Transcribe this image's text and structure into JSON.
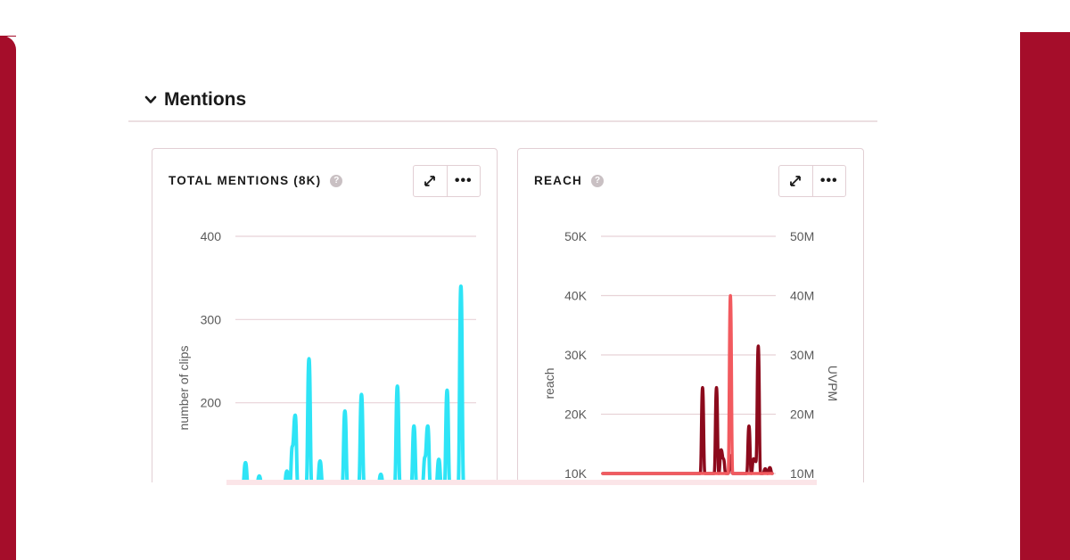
{
  "colors": {
    "brand": "#a50d2a",
    "mentions_line": "#2ee4f6",
    "reach_line": "#8c0a1c",
    "uvpm_line": "#f25a5f",
    "gridline": "#e8d2d7"
  },
  "section": {
    "title": "Mentions",
    "toggle_icon": "chevron-down-icon"
  },
  "cards": {
    "mentions": {
      "title": "TOTAL MENTIONS (8K)",
      "help_icon": "?",
      "expand_icon": "expand-arrows-icon",
      "more_label": "•••"
    },
    "reach": {
      "title": "REACH",
      "help_icon": "?",
      "expand_icon": "expand-arrows-icon",
      "more_label": "•••"
    }
  },
  "chart_data": [
    {
      "type": "line",
      "title": "TOTAL MENTIONS (8K)",
      "ylabel": "number of clips",
      "yticks": [
        "400",
        "300",
        "200"
      ],
      "ylim": [
        100,
        400
      ],
      "series": [
        {
          "color": "#2ee4f6",
          "values": [
            100,
            100,
            100,
            128,
            100,
            100,
            100,
            100,
            112,
            100,
            100,
            100,
            100,
            100,
            100,
            100,
            100,
            100,
            118,
            100,
            148,
            185,
            100,
            100,
            100,
            100,
            253,
            100,
            100,
            100,
            130,
            100,
            100,
            100,
            100,
            100,
            100,
            100,
            100,
            190,
            100,
            100,
            100,
            100,
            100,
            210,
            100,
            100,
            100,
            100,
            100,
            100,
            114,
            100,
            100,
            100,
            100,
            100,
            220,
            100,
            100,
            100,
            100,
            100,
            172,
            100,
            100,
            100,
            135,
            172,
            100,
            100,
            100,
            132,
            100,
            100,
            215,
            100,
            100,
            100,
            100,
            340,
            100
          ]
        }
      ]
    },
    {
      "type": "line",
      "title": "REACH",
      "ylabel": "reach",
      "y2label": "UVPM",
      "yticks": [
        "50K",
        "40K",
        "30K",
        "20K",
        "10K"
      ],
      "y2ticks": [
        "50M",
        "40M",
        "30M",
        "20M",
        "10M"
      ],
      "ylim": [
        10000,
        50000
      ],
      "y2lim": [
        10000000,
        50000000
      ],
      "series": [
        {
          "axis": "left",
          "color": "#8c0a1c",
          "values": [
            10000,
            10000,
            10000,
            10000,
            10000,
            10000,
            10000,
            10000,
            10000,
            10000,
            10000,
            10000,
            10000,
            10000,
            10000,
            10000,
            10000,
            10000,
            10000,
            10000,
            10000,
            10000,
            10000,
            10000,
            10000,
            10000,
            10000,
            10000,
            10000,
            10000,
            10000,
            10000,
            10000,
            10000,
            10000,
            10000,
            10000,
            10000,
            10000,
            10000,
            10000,
            10000,
            10000,
            24500,
            10000,
            10000,
            10000,
            10000,
            10000,
            24500,
            10000,
            14000,
            12500,
            10000,
            10000,
            13000,
            10000,
            10000,
            10000,
            10000,
            10000,
            10000,
            10000,
            18000,
            10000,
            12500,
            12000,
            31500,
            10000,
            10000,
            10800,
            10000,
            11000,
            10000
          ]
        },
        {
          "axis": "right",
          "color": "#f25a5f",
          "values": [
            10000000,
            10000000,
            10000000,
            10000000,
            10000000,
            10000000,
            10000000,
            10000000,
            10000000,
            10000000,
            10000000,
            10000000,
            10000000,
            10000000,
            10000000,
            10000000,
            10000000,
            10000000,
            10000000,
            10000000,
            10000000,
            10000000,
            10000000,
            10000000,
            10000000,
            10000000,
            10000000,
            10000000,
            10000000,
            10000000,
            10000000,
            10000000,
            10000000,
            10000000,
            10000000,
            10000000,
            10000000,
            10000000,
            10000000,
            10000000,
            10000000,
            10000000,
            10000000,
            10000000,
            10000000,
            10000000,
            10000000,
            10000000,
            10000000,
            10000000,
            10000000,
            10000000,
            10000000,
            10000000,
            10000000,
            40000000,
            10000000,
            10000000,
            10000000,
            10000000,
            10000000,
            10000000,
            10000000,
            10000000,
            10000000,
            10000000,
            10000000,
            10000000,
            10000000,
            10000000,
            10000000,
            10000000,
            10000000,
            10000000
          ]
        }
      ]
    }
  ]
}
